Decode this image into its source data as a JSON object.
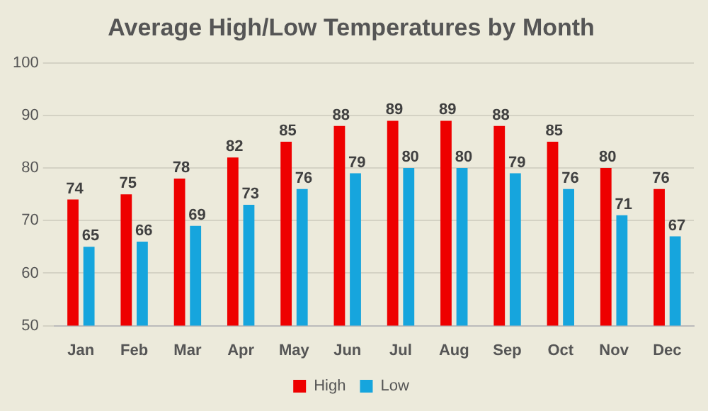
{
  "chart_data": {
    "type": "bar",
    "title": "Average High/Low Temperatures by Month",
    "categories": [
      "Jan",
      "Feb",
      "Mar",
      "Apr",
      "May",
      "Jun",
      "Jul",
      "Aug",
      "Sep",
      "Oct",
      "Nov",
      "Dec"
    ],
    "series": [
      {
        "name": "High",
        "color": "#ee0000",
        "values": [
          74,
          75,
          78,
          82,
          85,
          88,
          89,
          89,
          88,
          85,
          80,
          76
        ]
      },
      {
        "name": "Low",
        "color": "#16a5dd",
        "values": [
          65,
          66,
          69,
          73,
          76,
          79,
          80,
          80,
          79,
          76,
          71,
          67
        ]
      }
    ],
    "ylim": [
      50,
      100
    ],
    "yticks": [
      50,
      60,
      70,
      80,
      90,
      100
    ],
    "grid": "y",
    "legend": "bottom",
    "data_labels": true
  }
}
